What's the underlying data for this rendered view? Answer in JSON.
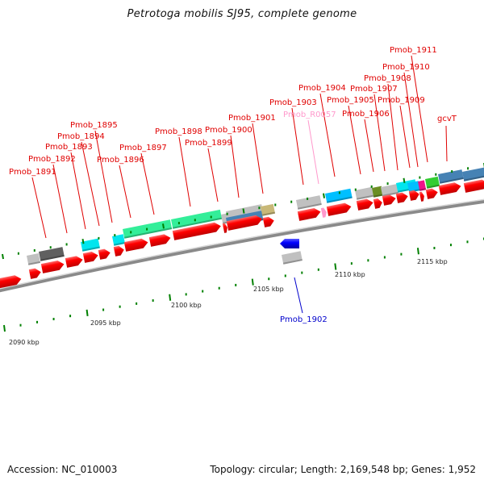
{
  "title": "Petrotoga mobilis SJ95, complete genome",
  "footer": {
    "accession": "Accession: NC_010003",
    "summary": "Topology: circular; Length: 2,169,548 bp; Genes: 1,952"
  },
  "colors": {
    "forward_gene": "#ff0000",
    "reverse_gene": "#0000ff",
    "rna_gene": "#ff99cc",
    "tick": "#008000",
    "backbone": "#888888"
  },
  "scale_labels": [
    "2090 kbp",
    "2095 kbp",
    "2100 kbp",
    "2105 kbp",
    "2110 kbp",
    "2115 kbp"
  ],
  "forward_labels": [
    {
      "name": "Pmob_1891",
      "color": "#e00000"
    },
    {
      "name": "Pmob_1892",
      "color": "#e00000"
    },
    {
      "name": "Pmob_1893",
      "color": "#e00000"
    },
    {
      "name": "Pmob_1894",
      "color": "#e00000"
    },
    {
      "name": "Pmob_1895",
      "color": "#e00000"
    },
    {
      "name": "Pmob_1896",
      "color": "#e00000"
    },
    {
      "name": "Pmob_1897",
      "color": "#e00000"
    },
    {
      "name": "Pmob_1898",
      "color": "#e00000"
    },
    {
      "name": "Pmob_1899",
      "color": "#e00000"
    },
    {
      "name": "Pmob_1900",
      "color": "#e00000"
    },
    {
      "name": "Pmob_1901",
      "color": "#e00000"
    },
    {
      "name": "Pmob_1903",
      "color": "#e00000"
    },
    {
      "name": "Pmob_R0057",
      "color": "#ff99cc"
    },
    {
      "name": "Pmob_1904",
      "color": "#e00000"
    },
    {
      "name": "Pmob_1905",
      "color": "#e00000"
    },
    {
      "name": "Pmob_1906",
      "color": "#e00000"
    },
    {
      "name": "Pmob_1907",
      "color": "#e00000"
    },
    {
      "name": "Pmob_1908",
      "color": "#e00000"
    },
    {
      "name": "Pmob_1909",
      "color": "#e00000"
    },
    {
      "name": "Pmob_1910",
      "color": "#e00000"
    },
    {
      "name": "Pmob_1911",
      "color": "#e00000"
    },
    {
      "name": "gcvT",
      "color": "#e00000"
    }
  ],
  "reverse_labels": [
    {
      "name": "Pmob_1902",
      "color": "#0000cc"
    }
  ],
  "cog_colors": [
    "#c0c0c0",
    "#606060",
    "#00e5ee",
    "#33ee99",
    "#4682b4",
    "#c8b878",
    "#6b8e23",
    "#00bfff",
    "#ee1289",
    "#32cd32"
  ]
}
